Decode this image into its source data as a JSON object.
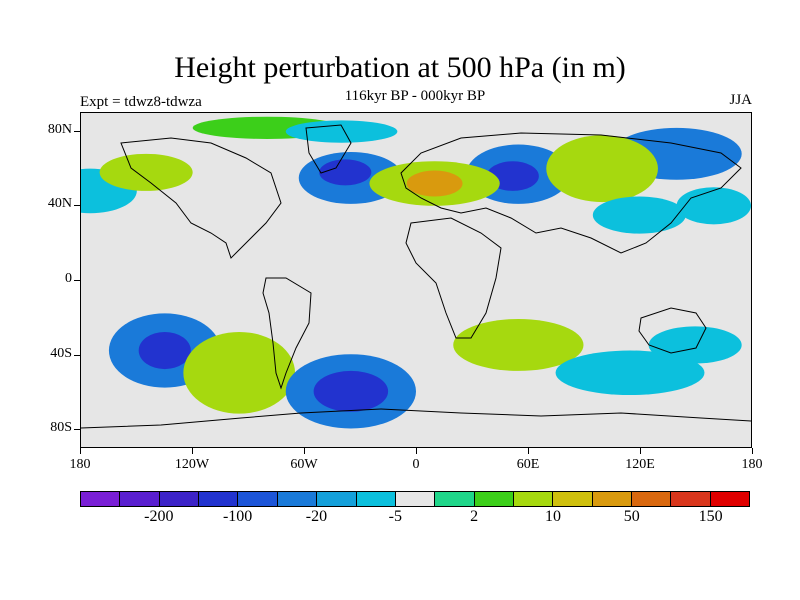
{
  "header": {
    "title": "Height perturbation at 500 hPa (in m)",
    "subtitle": "116kyr BP - 000kyr BP",
    "expt": "Expt = tdwz8-tdwza",
    "season": "JJA"
  },
  "axes": {
    "y_ticks": [
      {
        "label": "80N",
        "lat": 80
      },
      {
        "label": "40N",
        "lat": 40
      },
      {
        "label": "0",
        "lat": 0
      },
      {
        "label": "40S",
        "lat": -40
      },
      {
        "label": "80S",
        "lat": -80
      }
    ],
    "x_ticks": [
      {
        "label": "180",
        "lon": -180
      },
      {
        "label": "120W",
        "lon": -120
      },
      {
        "label": "60W",
        "lon": -60
      },
      {
        "label": "0",
        "lon": 0
      },
      {
        "label": "60E",
        "lon": 60
      },
      {
        "label": "120E",
        "lon": 120
      },
      {
        "label": "180",
        "lon": 180
      }
    ]
  },
  "colorbar": {
    "colors": [
      "#7a1fd6",
      "#5a1fd0",
      "#3c23c8",
      "#2233cf",
      "#1c55d8",
      "#1a7ad9",
      "#14a0da",
      "#0cc0dd",
      "#e6e6e6",
      "#1fd68a",
      "#3ccf1a",
      "#a6d90f",
      "#cfc00d",
      "#d99a0e",
      "#d9680e",
      "#d9361c",
      "#e00000"
    ],
    "labels": [
      {
        "text": "-200",
        "index": 1
      },
      {
        "text": "-100",
        "index": 3
      },
      {
        "text": "-20",
        "index": 5
      },
      {
        "text": "-5",
        "index": 7
      },
      {
        "text": "2",
        "index": 9
      },
      {
        "text": "10",
        "index": 11
      },
      {
        "text": "50",
        "index": 13
      },
      {
        "text": "150",
        "index": 15
      }
    ]
  },
  "anomalies": [
    {
      "lon": -35,
      "lat": 55,
      "rx": 28,
      "ry": 14,
      "value": -20
    },
    {
      "lon": -38,
      "lat": 58,
      "rx": 14,
      "ry": 7,
      "value": -100
    },
    {
      "lon": 55,
      "lat": 57,
      "rx": 28,
      "ry": 16,
      "value": -20
    },
    {
      "lon": 52,
      "lat": 56,
      "rx": 14,
      "ry": 8,
      "value": -100
    },
    {
      "lon": 140,
      "lat": 68,
      "rx": 35,
      "ry": 14,
      "value": -20
    },
    {
      "lon": -175,
      "lat": 48,
      "rx": 25,
      "ry": 12,
      "value": -5
    },
    {
      "lon": -145,
      "lat": 58,
      "rx": 25,
      "ry": 10,
      "value": 10
    },
    {
      "lon": 10,
      "lat": 52,
      "rx": 35,
      "ry": 12,
      "value": 10
    },
    {
      "lon": 10,
      "lat": 52,
      "rx": 15,
      "ry": 7,
      "value": 50
    },
    {
      "lon": 100,
      "lat": 60,
      "rx": 30,
      "ry": 18,
      "value": 10
    },
    {
      "lon": 120,
      "lat": 35,
      "rx": 25,
      "ry": 10,
      "value": -5
    },
    {
      "lon": 160,
      "lat": 40,
      "rx": 20,
      "ry": 10,
      "value": -5
    },
    {
      "lon": -135,
      "lat": -38,
      "rx": 30,
      "ry": 20,
      "value": -20
    },
    {
      "lon": -135,
      "lat": -38,
      "rx": 14,
      "ry": 10,
      "value": -100
    },
    {
      "lon": -95,
      "lat": -50,
      "rx": 30,
      "ry": 22,
      "value": 10
    },
    {
      "lon": -35,
      "lat": -60,
      "rx": 35,
      "ry": 20,
      "value": -20
    },
    {
      "lon": -35,
      "lat": -60,
      "rx": 20,
      "ry": 11,
      "value": -100
    },
    {
      "lon": 55,
      "lat": -35,
      "rx": 35,
      "ry": 14,
      "value": 10
    },
    {
      "lon": 115,
      "lat": -50,
      "rx": 40,
      "ry": 12,
      "value": -5
    },
    {
      "lon": 150,
      "lat": -35,
      "rx": 25,
      "ry": 10,
      "value": -5
    },
    {
      "lon": -80,
      "lat": 82,
      "rx": 40,
      "ry": 6,
      "value": 5
    },
    {
      "lon": -40,
      "lat": 80,
      "rx": 30,
      "ry": 6,
      "value": -5
    }
  ]
}
